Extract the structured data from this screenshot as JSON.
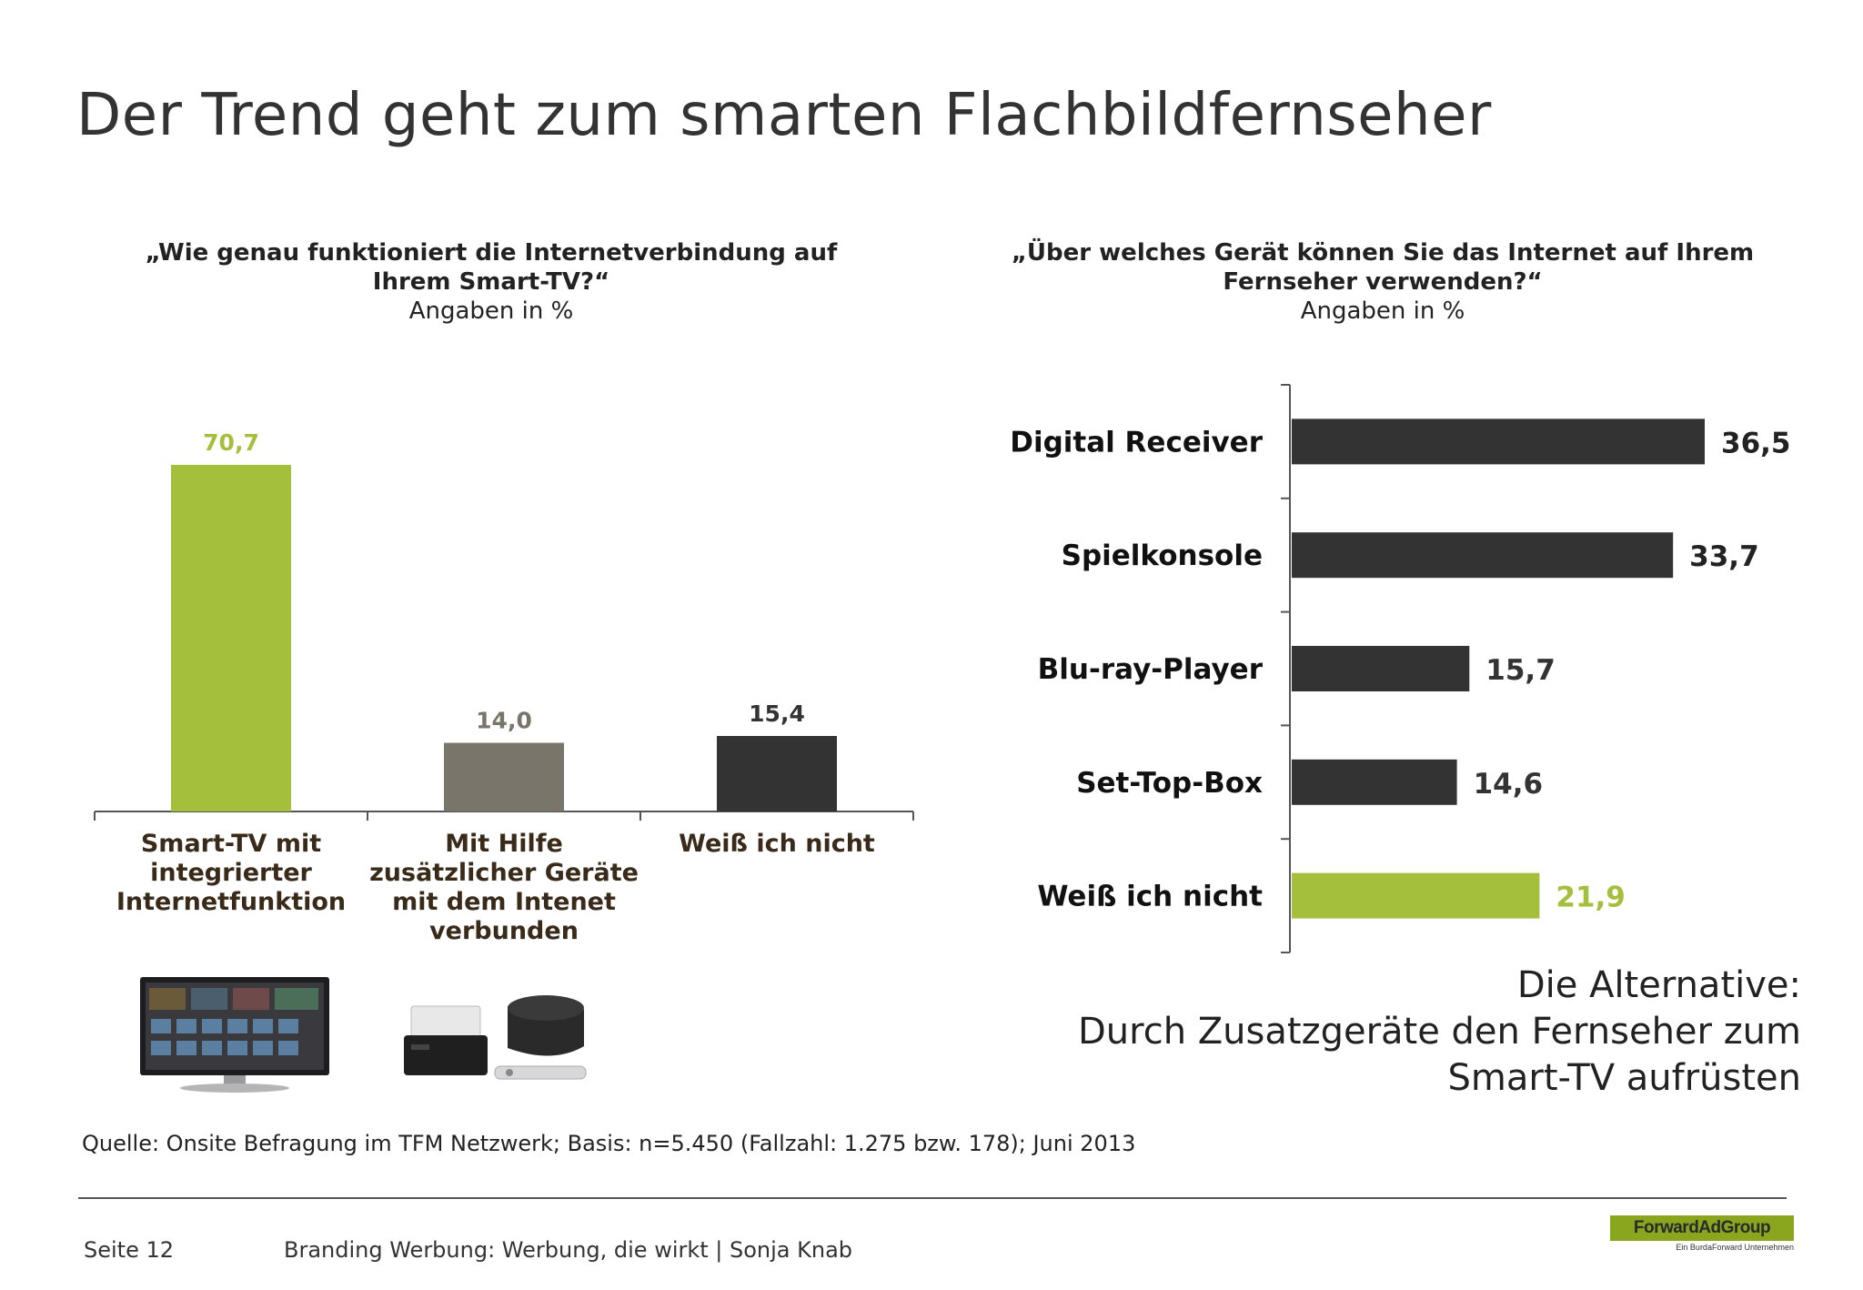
{
  "title": "Der Trend geht zum smarten Flachbildfernseher",
  "left_question": {
    "line1": "„Wie genau funktioniert die Internetverbindung auf",
    "line2": "Ihrem Smart-TV?“",
    "unit": "Angaben in %"
  },
  "right_question": {
    "line1": "„Über welches Gerät können Sie das Internet auf Ihrem",
    "line2": "Fernseher verwenden?“",
    "unit": "Angaben in %"
  },
  "colors": {
    "green": "#a3bf3c",
    "gray": "#7a756b",
    "dark": "#333333"
  },
  "chart_data": [
    {
      "type": "bar",
      "orientation": "vertical",
      "categories": [
        [
          "Smart-TV mit",
          "integrierter",
          "Internetfunktion"
        ],
        [
          "Mit Hilfe",
          "zusätzlicher Geräte",
          "mit dem Intenet",
          "verbunden"
        ],
        [
          "Weiß ich nicht"
        ]
      ],
      "values": [
        70.7,
        14.0,
        15.4
      ],
      "value_labels": [
        "70,7",
        "14,0",
        "15,4"
      ],
      "bar_colors": [
        "#a3bf3c",
        "#7a756b",
        "#333333"
      ],
      "label_colors": [
        "#a3bf3c",
        "#7a756b",
        "#333333"
      ],
      "ylim": [
        0,
        75
      ]
    },
    {
      "type": "bar",
      "orientation": "horizontal",
      "categories": [
        "Digital Receiver",
        "Spielkonsole",
        "Blu-ray-Player",
        "Set-Top-Box",
        "Weiß ich nicht"
      ],
      "values": [
        36.5,
        33.7,
        15.7,
        14.6,
        21.9
      ],
      "value_labels": [
        "36,5",
        "33,7",
        "15,7",
        "14,6",
        "21,9"
      ],
      "bar_colors": [
        "#333333",
        "#333333",
        "#333333",
        "#333333",
        "#a3bf3c"
      ],
      "label_colors": [
        "#222222",
        "#222222",
        "#333333",
        "#333333",
        "#a3bf3c"
      ],
      "xlim": [
        0,
        40
      ]
    }
  ],
  "alternative": {
    "line1": "Die Alternative:",
    "line2": "Durch Zusatzgeräte den Fernseher zum",
    "line3": "Smart-TV aufrüsten"
  },
  "source": "Quelle: Onsite Befragung im TFM Netzwerk; Basis: n=5.450 (Fallzahl: 1.275 bzw. 178); Juni 2013",
  "footer": {
    "page": "Seite 12",
    "text": "Branding Werbung: Werbung, die wirkt | Sonja Knab",
    "logo": "ForwardAdGroup",
    "logo_sub": "Ein BurdaForward Unternehmen"
  },
  "icons": [
    "smart-tv-photo",
    "set-top-box-photo"
  ]
}
